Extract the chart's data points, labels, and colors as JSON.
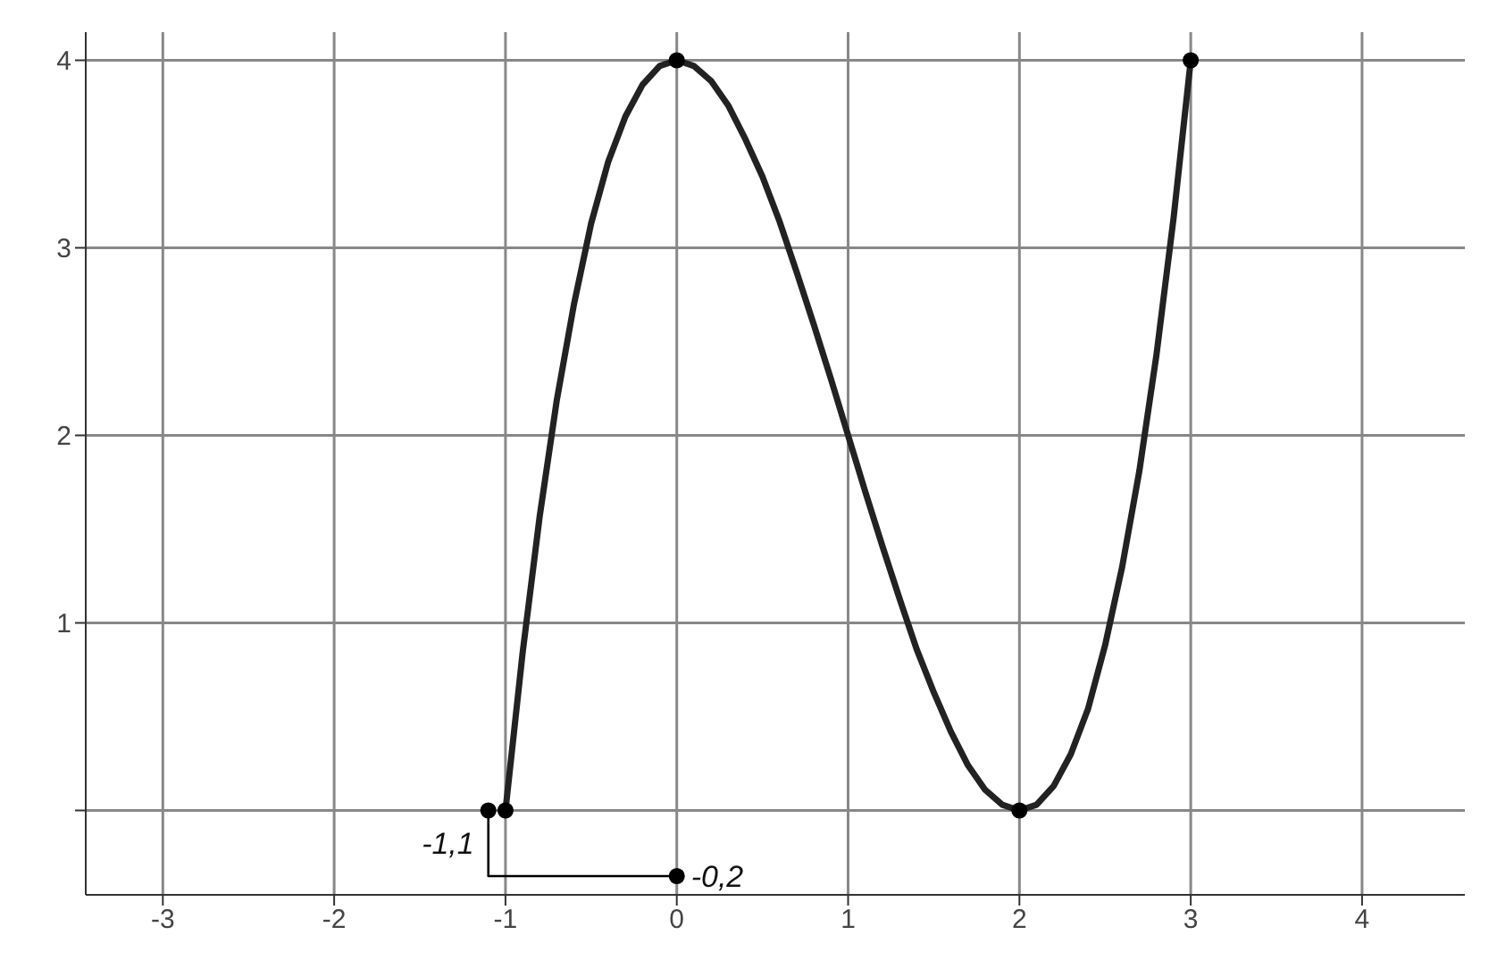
{
  "chart_data": {
    "type": "line",
    "xlim": [
      -3.45,
      4.6
    ],
    "ylim": [
      -0.45,
      4.15
    ],
    "xticks": [
      -3,
      -2,
      -1,
      0,
      1,
      2,
      3,
      4
    ],
    "yticks": [
      {
        "value": 0,
        "label": null
      },
      1,
      2,
      3,
      4
    ],
    "grid": true,
    "marker": "none",
    "line_style": "solid",
    "series": [
      {
        "color": "#222222",
        "x": [
          -1,
          -0.9,
          -0.8,
          -0.7,
          -0.6,
          -0.5,
          -0.4,
          -0.3,
          -0.2,
          -0.1,
          0,
          0.1,
          0.2,
          0.3,
          0.4,
          0.5,
          0.6,
          0.7,
          0.8,
          0.9,
          1,
          1.1,
          1.2,
          1.3,
          1.4,
          1.5,
          1.6,
          1.7,
          1.8,
          1.9,
          2,
          2.1,
          2.2,
          2.3,
          2.4,
          2.5,
          2.6,
          2.7,
          2.8,
          2.9,
          3
        ],
        "values": [
          0,
          0.84,
          1.57,
          2.19,
          2.7,
          3.13,
          3.46,
          3.7,
          3.87,
          3.97,
          4,
          3.97,
          3.89,
          3.76,
          3.58,
          3.38,
          3.14,
          2.87,
          2.59,
          2.3,
          2,
          1.7,
          1.41,
          1.13,
          0.86,
          0.63,
          0.42,
          0.24,
          0.11,
          0.03,
          0,
          0.03,
          0.13,
          0.3,
          0.54,
          0.88,
          1.3,
          1.81,
          2.43,
          3.16,
          4
        ]
      },
      {
        "type": "line",
        "color": "#000000",
        "x": [
          -1.1,
          -1.1,
          0
        ],
        "values": [
          0,
          -0.35,
          -0.35
        ]
      },
      {
        "type": "scatter",
        "color": "#000000",
        "marker": "circle",
        "x": [
          -1.1,
          -1,
          0,
          2,
          3,
          0
        ],
        "values": [
          0,
          0,
          4,
          0,
          4,
          -0.35
        ]
      }
    ],
    "annotations": [
      {
        "text": "-1,1",
        "x": -1.1,
        "y": 0
      },
      {
        "text": "-0,2",
        "x": 0,
        "y": -0.35
      }
    ]
  }
}
